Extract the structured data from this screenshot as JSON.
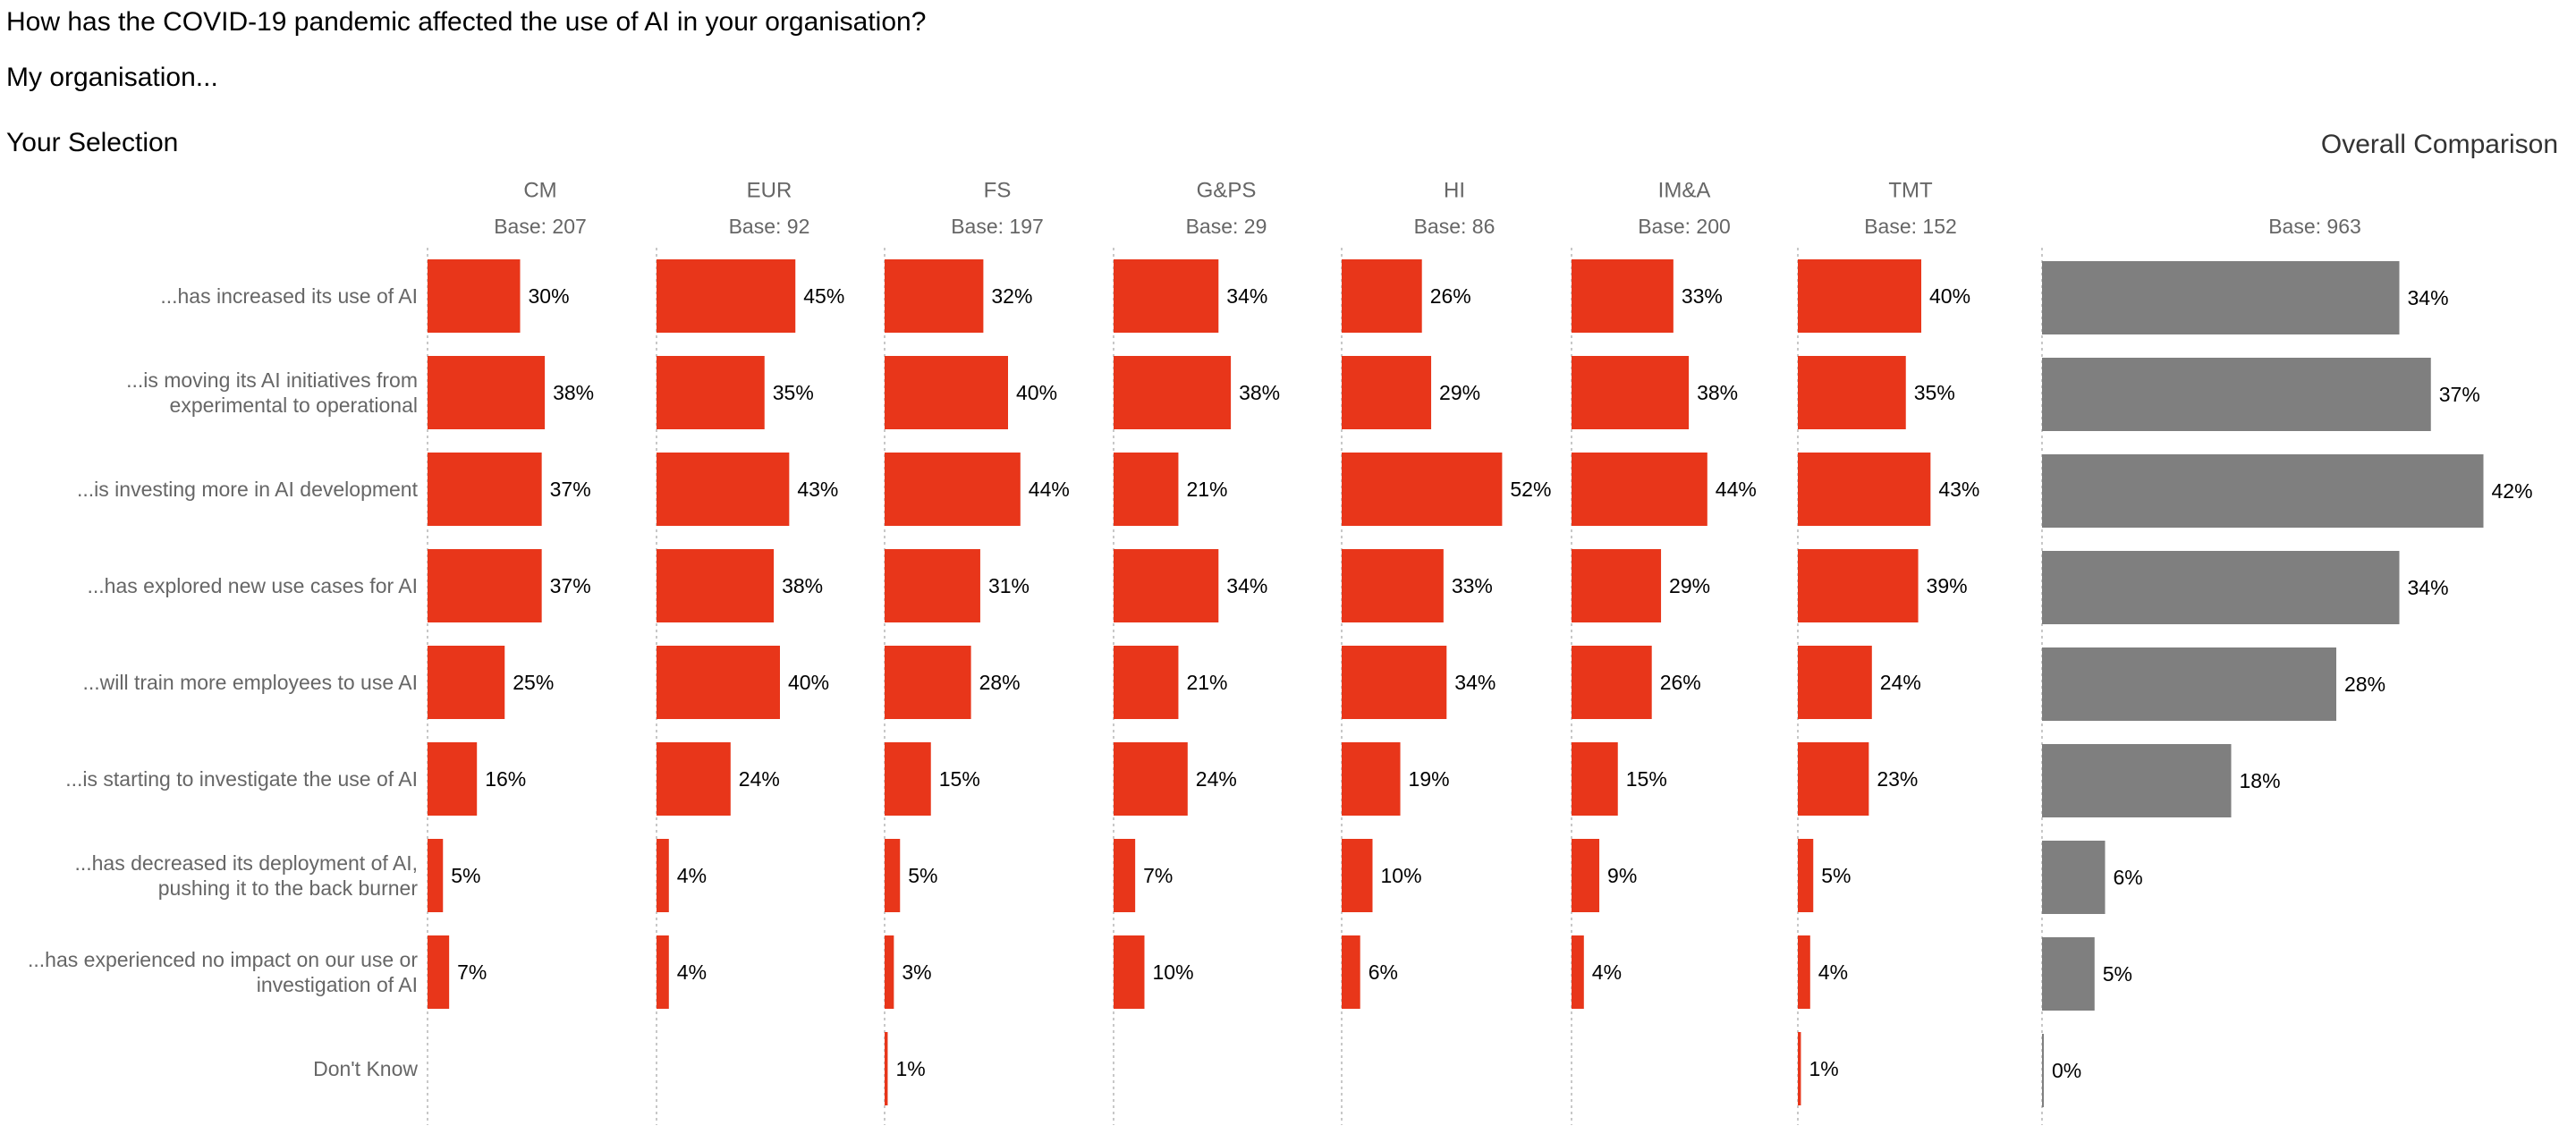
{
  "header": {
    "question": "How has the COVID-19 pandemic affected the use of AI in your organisation?",
    "subtitle": "My organisation...",
    "your_selection": "Your Selection",
    "overall_comparison": "Overall Comparison"
  },
  "colors": {
    "selection_bar": "#E8361A",
    "overall_bar": "#7F7F7F",
    "axis_line": "#C8C8C8"
  },
  "chart_data": {
    "type": "bar",
    "orientation": "horizontal",
    "unit": "%",
    "categories": [
      [
        "...has increased its use of AI"
      ],
      [
        "...is moving its AI initiatives from",
        "experimental to operational"
      ],
      [
        "...is investing more in AI development"
      ],
      [
        "...has explored new use cases for AI"
      ],
      [
        "...will train more employees to use AI"
      ],
      [
        "...is starting to investigate the use of AI"
      ],
      [
        "...has decreased its deployment of AI,",
        "pushing it to the back burner"
      ],
      [
        "...has experienced no impact on our use or",
        "investigation of AI"
      ],
      [
        "Don't Know"
      ]
    ],
    "series": [
      {
        "name": "CM",
        "base": "Base: 207",
        "group": "selection",
        "values": [
          30,
          38,
          37,
          37,
          25,
          16,
          5,
          7,
          null
        ]
      },
      {
        "name": "EUR",
        "base": "Base: 92",
        "group": "selection",
        "values": [
          45,
          35,
          43,
          38,
          40,
          24,
          4,
          4,
          null
        ]
      },
      {
        "name": "FS",
        "base": "Base: 197",
        "group": "selection",
        "values": [
          32,
          40,
          44,
          31,
          28,
          15,
          5,
          3,
          1
        ]
      },
      {
        "name": "G&PS",
        "base": "Base: 29",
        "group": "selection",
        "values": [
          34,
          38,
          21,
          34,
          21,
          24,
          7,
          10,
          null
        ]
      },
      {
        "name": "HI",
        "base": "Base: 86",
        "group": "selection",
        "values": [
          26,
          29,
          52,
          33,
          34,
          19,
          10,
          6,
          null
        ]
      },
      {
        "name": "IM&A",
        "base": "Base: 200",
        "group": "selection",
        "values": [
          33,
          38,
          44,
          29,
          26,
          15,
          9,
          4,
          null
        ]
      },
      {
        "name": "TMT",
        "base": "Base: 152",
        "group": "selection",
        "values": [
          40,
          35,
          43,
          39,
          24,
          23,
          5,
          4,
          1
        ]
      },
      {
        "name": "",
        "base": "Base: 963",
        "group": "overall",
        "values": [
          34,
          37,
          42,
          34,
          28,
          18,
          6,
          5,
          0
        ]
      }
    ],
    "grid": false,
    "legend": "none"
  }
}
